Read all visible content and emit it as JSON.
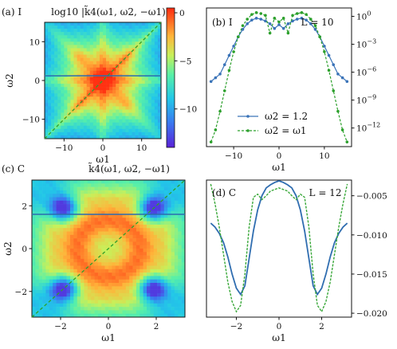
{
  "chart_data": [
    {
      "panel": "a",
      "type": "heatmap",
      "tag": "(a) I",
      "title": "log10 |k̃4(ω1, ω2, −ω1)|",
      "xlabel": "ω1",
      "ylabel": "ω2",
      "xlim": [
        -15,
        15
      ],
      "ylim": [
        -15,
        15
      ],
      "xticks": [
        -10,
        0,
        10
      ],
      "yticks": [
        -10,
        0,
        10
      ],
      "colorbar": {
        "range": [
          -14,
          0.5
        ],
        "ticks": [
          "0",
          "−5",
          "−10"
        ],
        "tick_values": [
          0,
          -5,
          -10
        ]
      },
      "overlay_lines": [
        {
          "kind": "horizontal",
          "y": 1.2,
          "color": "#2b6cb0"
        },
        {
          "kind": "diagonal",
          "color": "#2ca02c"
        }
      ]
    },
    {
      "panel": "b",
      "type": "line",
      "tag": "(b) I",
      "annotation": "L = 10",
      "xlabel": "ω1",
      "xlim": [
        -16,
        16
      ],
      "yscale": "log",
      "yticks": [
        "10^0",
        "10^−3",
        "10^−6",
        "10^−9",
        "10^−12"
      ],
      "ytick_exponents": [
        0,
        -3,
        -6,
        -9,
        -12
      ],
      "xticks": [
        -10,
        0,
        10
      ],
      "legend": {
        "placement": "lower-center",
        "entries": [
          "ω2 = 1.2",
          "ω2 = ω1"
        ]
      },
      "series": [
        {
          "name": "ω2 = 1.2",
          "color": "#3a73b8",
          "style": "solid",
          "x": [
            -15,
            -14,
            -13,
            -12,
            -11,
            -10,
            -9,
            -8,
            -7,
            -6,
            -5,
            -4,
            -3,
            -2,
            -1,
            0,
            1,
            2,
            3,
            4,
            5,
            6,
            7,
            8,
            9,
            10,
            11,
            12,
            13,
            14,
            15
          ],
          "log10_y": [
            -7.0,
            -6.6,
            -6.2,
            -5.2,
            -4.2,
            -3.2,
            -2.2,
            -1.4,
            -0.8,
            -0.4,
            -0.2,
            -0.3,
            -0.5,
            -0.8,
            -1.3,
            -0.9,
            -1.3,
            -0.8,
            -0.5,
            -0.3,
            -0.2,
            -0.4,
            -0.8,
            -1.4,
            -2.2,
            -3.2,
            -4.2,
            -5.2,
            -6.2,
            -6.6,
            -7.0
          ]
        },
        {
          "name": "ω2 = ω1",
          "color": "#2ca02c",
          "style": "dashed",
          "x": [
            -15,
            -14,
            -13,
            -12,
            -11,
            -10,
            -9,
            -8,
            -7,
            -6,
            -5,
            -4,
            -3,
            -2,
            -1,
            0,
            1,
            2,
            3,
            4,
            5,
            6,
            7,
            8,
            9,
            10,
            11,
            12,
            13,
            14,
            15
          ],
          "log10_y": [
            -13.5,
            -12.2,
            -10.2,
            -8.0,
            -5.8,
            -3.8,
            -2.2,
            -1.0,
            -0.3,
            0.2,
            0.4,
            0.3,
            0.1,
            -1.8,
            -0.2,
            -0.6,
            -0.2,
            -1.8,
            0.1,
            0.3,
            0.4,
            0.2,
            -0.3,
            -1.0,
            -2.2,
            -3.8,
            -5.8,
            -8.0,
            -10.2,
            -12.2,
            -13.5
          ]
        }
      ]
    },
    {
      "panel": "c",
      "type": "heatmap",
      "tag": "(c) C",
      "title": "k̃4(ω1, ω2, −ω1)",
      "xlabel": "ω1",
      "ylabel": "ω2",
      "xlim": [
        -3.2,
        3.2
      ],
      "ylim": [
        -3.2,
        3.2
      ],
      "xticks": [
        -2,
        0,
        2
      ],
      "yticks": [
        -2,
        0,
        2
      ],
      "overlay_lines": [
        {
          "kind": "horizontal",
          "y": 1.6,
          "color": "#2b6cb0"
        },
        {
          "kind": "diagonal",
          "color": "#2ca02c"
        }
      ]
    },
    {
      "panel": "d",
      "type": "line",
      "tag": "(d) C",
      "annotation": "L = 12",
      "xlabel": "ω1",
      "xlim": [
        -3.4,
        3.4
      ],
      "ylim": [
        -0.0205,
        -0.003
      ],
      "xticks": [
        -2,
        0,
        2
      ],
      "yticks": [
        "−0.005",
        "−0.010",
        "−0.015",
        "−0.020"
      ],
      "ytick_values": [
        -0.005,
        -0.01,
        -0.015,
        -0.02
      ],
      "series": [
        {
          "name": "",
          "color": "#2f6db0",
          "style": "solid",
          "x": [
            -3.2,
            -3.0,
            -2.8,
            -2.6,
            -2.4,
            -2.2,
            -2.0,
            -1.8,
            -1.6,
            -1.4,
            -1.2,
            -1.0,
            -0.8,
            -0.6,
            -0.4,
            -0.2,
            0.0,
            0.2,
            0.4,
            0.6,
            0.8,
            1.0,
            1.2,
            1.4,
            1.6,
            1.8,
            2.0,
            2.2,
            2.4,
            2.6,
            2.8,
            3.0,
            3.2
          ],
          "y": [
            -0.0085,
            -0.009,
            -0.0098,
            -0.011,
            -0.0128,
            -0.015,
            -0.0168,
            -0.0176,
            -0.0165,
            -0.013,
            -0.0095,
            -0.0068,
            -0.005,
            -0.004,
            -0.0036,
            -0.0033,
            -0.0031,
            -0.0033,
            -0.0036,
            -0.004,
            -0.005,
            -0.0068,
            -0.0095,
            -0.013,
            -0.0165,
            -0.0176,
            -0.0168,
            -0.015,
            -0.0128,
            -0.011,
            -0.0098,
            -0.009,
            -0.0085
          ]
        },
        {
          "name": "",
          "color": "#3aa83a",
          "style": "dashed",
          "x": [
            -3.2,
            -3.0,
            -2.8,
            -2.6,
            -2.4,
            -2.2,
            -2.0,
            -1.8,
            -1.6,
            -1.4,
            -1.2,
            -1.0,
            -0.8,
            -0.6,
            -0.4,
            -0.2,
            0.0,
            0.2,
            0.4,
            0.6,
            0.8,
            1.0,
            1.2,
            1.4,
            1.6,
            1.8,
            2.0,
            2.2,
            2.4,
            2.6,
            2.8,
            3.0,
            3.2
          ],
          "y": [
            -0.0035,
            -0.006,
            -0.009,
            -0.0125,
            -0.016,
            -0.0185,
            -0.0198,
            -0.019,
            -0.015,
            -0.009,
            -0.0052,
            -0.0048,
            -0.0055,
            -0.005,
            -0.0044,
            -0.0042,
            -0.004,
            -0.0042,
            -0.0044,
            -0.005,
            -0.0055,
            -0.0048,
            -0.0052,
            -0.009,
            -0.015,
            -0.019,
            -0.0198,
            -0.0185,
            -0.016,
            -0.0125,
            -0.009,
            -0.006,
            -0.0035
          ]
        }
      ]
    }
  ]
}
